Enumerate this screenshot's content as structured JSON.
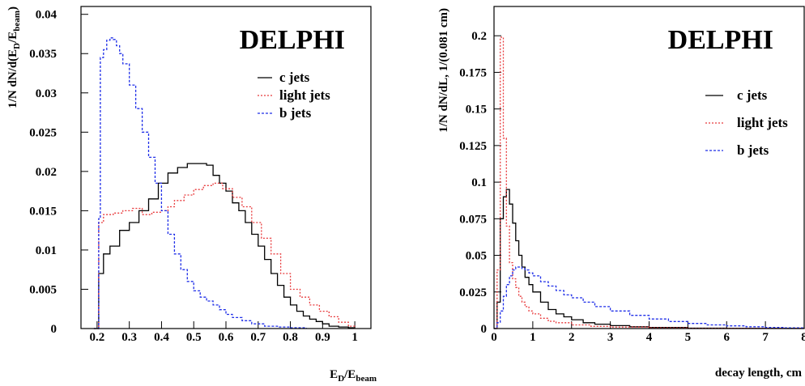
{
  "chart_data": [
    {
      "type": "line",
      "style": "step-histogram",
      "watermark": "DELPHI",
      "xlabel": "E_D/E_beam",
      "xlabel_main": "E",
      "xlabel_sub1": "D",
      "xlabel_slash": "/E",
      "xlabel_sub2": "beam",
      "ylabel": "1/N dN/d(E_D/E_beam)",
      "ylabel_main": "1/N dN/d(E",
      "ylabel_sub1": "D",
      "ylabel_slash": "/E",
      "ylabel_sub2": "beam",
      "ylabel_close": ")",
      "xlim": [
        0.15,
        1.05
      ],
      "ylim": [
        0,
        0.041
      ],
      "xticks": [
        "0.2",
        "0.3",
        "0.4",
        "0.5",
        "0.6",
        "0.7",
        "0.8",
        "0.9",
        "1"
      ],
      "yticks": [
        "0",
        "0.005",
        "0.01",
        "0.015",
        "0.02",
        "0.025",
        "0.03",
        "0.035",
        "0.04"
      ],
      "legend_position": "top-right",
      "series": [
        {
          "name": "c jets",
          "color": "#000000",
          "dash": "solid",
          "points": [
            [
              0.19,
              0
            ],
            [
              0.2,
              0
            ],
            [
              0.205,
              0.007
            ],
            [
              0.22,
              0.0095
            ],
            [
              0.24,
              0.0105
            ],
            [
              0.27,
              0.0125
            ],
            [
              0.3,
              0.0135
            ],
            [
              0.33,
              0.015
            ],
            [
              0.36,
              0.0165
            ],
            [
              0.39,
              0.0185
            ],
            [
              0.42,
              0.0198
            ],
            [
              0.45,
              0.0205
            ],
            [
              0.48,
              0.021
            ],
            [
              0.51,
              0.021
            ],
            [
              0.54,
              0.0208
            ],
            [
              0.56,
              0.0195
            ],
            [
              0.58,
              0.0185
            ],
            [
              0.6,
              0.0175
            ],
            [
              0.62,
              0.016
            ],
            [
              0.64,
              0.015
            ],
            [
              0.66,
              0.0135
            ],
            [
              0.68,
              0.012
            ],
            [
              0.7,
              0.0105
            ],
            [
              0.72,
              0.0088
            ],
            [
              0.74,
              0.007
            ],
            [
              0.76,
              0.0055
            ],
            [
              0.78,
              0.004
            ],
            [
              0.8,
              0.003
            ],
            [
              0.82,
              0.0022
            ],
            [
              0.84,
              0.0016
            ],
            [
              0.86,
              0.0012
            ],
            [
              0.88,
              0.0009
            ],
            [
              0.9,
              0.0006
            ],
            [
              0.92,
              0.0003
            ],
            [
              0.95,
              0.0002
            ],
            [
              0.98,
              0.0001
            ],
            [
              1.0,
              0
            ]
          ]
        },
        {
          "name": "light jets",
          "color": "#e8393b",
          "dash": "2,2",
          "points": [
            [
              0.19,
              0
            ],
            [
              0.2,
              0
            ],
            [
              0.205,
              0.0135
            ],
            [
              0.22,
              0.0145
            ],
            [
              0.25,
              0.0147
            ],
            [
              0.28,
              0.015
            ],
            [
              0.31,
              0.0153
            ],
            [
              0.34,
              0.0145
            ],
            [
              0.37,
              0.0148
            ],
            [
              0.4,
              0.015
            ],
            [
              0.42,
              0.0155
            ],
            [
              0.44,
              0.0163
            ],
            [
              0.47,
              0.017
            ],
            [
              0.5,
              0.0177
            ],
            [
              0.53,
              0.0182
            ],
            [
              0.56,
              0.0185
            ],
            [
              0.59,
              0.0178
            ],
            [
              0.62,
              0.0167
            ],
            [
              0.65,
              0.0155
            ],
            [
              0.68,
              0.0135
            ],
            [
              0.71,
              0.0115
            ],
            [
              0.74,
              0.0095
            ],
            [
              0.77,
              0.007
            ],
            [
              0.8,
              0.005
            ],
            [
              0.83,
              0.004
            ],
            [
              0.86,
              0.003
            ],
            [
              0.89,
              0.0022
            ],
            [
              0.92,
              0.0015
            ],
            [
              0.95,
              0.0008
            ],
            [
              0.98,
              0.0003
            ],
            [
              1.0,
              0
            ]
          ]
        },
        {
          "name": "b jets",
          "color": "#1f2fe8",
          "dash": "3,2",
          "points": [
            [
              0.19,
              0
            ],
            [
              0.2,
              0
            ],
            [
              0.205,
              0.014
            ],
            [
              0.21,
              0.0345
            ],
            [
              0.22,
              0.0355
            ],
            [
              0.23,
              0.0367
            ],
            [
              0.24,
              0.037
            ],
            [
              0.25,
              0.0368
            ],
            [
              0.26,
              0.036
            ],
            [
              0.27,
              0.035
            ],
            [
              0.28,
              0.0337
            ],
            [
              0.3,
              0.031
            ],
            [
              0.32,
              0.028
            ],
            [
              0.34,
              0.025
            ],
            [
              0.36,
              0.0218
            ],
            [
              0.38,
              0.0185
            ],
            [
              0.4,
              0.015
            ],
            [
              0.42,
              0.012
            ],
            [
              0.44,
              0.0095
            ],
            [
              0.46,
              0.0075
            ],
            [
              0.48,
              0.006
            ],
            [
              0.5,
              0.0048
            ],
            [
              0.52,
              0.004
            ],
            [
              0.54,
              0.0035
            ],
            [
              0.56,
              0.003
            ],
            [
              0.58,
              0.0024
            ],
            [
              0.6,
              0.0018
            ],
            [
              0.62,
              0.0014
            ],
            [
              0.65,
              0.001
            ],
            [
              0.68,
              0.0006
            ],
            [
              0.72,
              0.0003
            ],
            [
              0.76,
              0.0002
            ],
            [
              0.8,
              0.0001
            ],
            [
              0.85,
              0
            ]
          ]
        }
      ]
    },
    {
      "type": "line",
      "style": "step-histogram",
      "watermark": "DELPHI",
      "xlabel": "decay length, cm",
      "ylabel": "1/N dN/dL, 1/(0.081 cm)",
      "xlim": [
        0,
        8
      ],
      "ylim": [
        0,
        0.22
      ],
      "xticks": [
        "0",
        "1",
        "2",
        "3",
        "4",
        "5",
        "6",
        "7",
        "8"
      ],
      "yticks": [
        "0",
        "0.025",
        "0.05",
        "0.075",
        "0.1",
        "0.125",
        "0.15",
        "0.175",
        "0.2"
      ],
      "legend_position": "top-right",
      "series": [
        {
          "name": "c jets",
          "color": "#000000",
          "dash": "solid",
          "points": [
            [
              0,
              0
            ],
            [
              0.08,
              0.018
            ],
            [
              0.16,
              0.075
            ],
            [
              0.24,
              0.09
            ],
            [
              0.32,
              0.095
            ],
            [
              0.4,
              0.085
            ],
            [
              0.48,
              0.072
            ],
            [
              0.56,
              0.06
            ],
            [
              0.64,
              0.05
            ],
            [
              0.72,
              0.042
            ],
            [
              0.8,
              0.035
            ],
            [
              0.9,
              0.03
            ],
            [
              1.0,
              0.025
            ],
            [
              1.2,
              0.018
            ],
            [
              1.4,
              0.013
            ],
            [
              1.6,
              0.01
            ],
            [
              1.8,
              0.008
            ],
            [
              2.0,
              0.006
            ],
            [
              2.3,
              0.004
            ],
            [
              2.6,
              0.003
            ],
            [
              3.0,
              0.002
            ],
            [
              3.5,
              0.0012
            ],
            [
              4.0,
              0.0008
            ],
            [
              5.0,
              0.0003
            ],
            [
              6.0,
              0.0001
            ],
            [
              8.0,
              0
            ]
          ]
        },
        {
          "name": "light jets",
          "color": "#e8393b",
          "dash": "2,2",
          "points": [
            [
              0,
              0
            ],
            [
              0.08,
              0.04
            ],
            [
              0.16,
              0.199
            ],
            [
              0.24,
              0.13
            ],
            [
              0.32,
              0.07
            ],
            [
              0.4,
              0.045
            ],
            [
              0.48,
              0.034
            ],
            [
              0.56,
              0.028
            ],
            [
              0.64,
              0.022
            ],
            [
              0.72,
              0.018
            ],
            [
              0.8,
              0.015
            ],
            [
              0.9,
              0.012
            ],
            [
              1.0,
              0.01
            ],
            [
              1.2,
              0.007
            ],
            [
              1.4,
              0.005
            ],
            [
              1.6,
              0.004
            ],
            [
              2.0,
              0.0025
            ],
            [
              2.5,
              0.0015
            ],
            [
              3.0,
              0.001
            ],
            [
              4.0,
              0.0005
            ],
            [
              5.0,
              0.0002
            ],
            [
              8.0,
              0
            ]
          ]
        },
        {
          "name": "b jets",
          "color": "#1f2fe8",
          "dash": "3,2",
          "points": [
            [
              0,
              0
            ],
            [
              0.08,
              0.004
            ],
            [
              0.16,
              0.012
            ],
            [
              0.24,
              0.022
            ],
            [
              0.32,
              0.03
            ],
            [
              0.4,
              0.036
            ],
            [
              0.48,
              0.04
            ],
            [
              0.56,
              0.042
            ],
            [
              0.64,
              0.042
            ],
            [
              0.72,
              0.041
            ],
            [
              0.8,
              0.04
            ],
            [
              0.9,
              0.038
            ],
            [
              1.0,
              0.036
            ],
            [
              1.2,
              0.032
            ],
            [
              1.4,
              0.029
            ],
            [
              1.6,
              0.026
            ],
            [
              1.8,
              0.023
            ],
            [
              2.0,
              0.021
            ],
            [
              2.3,
              0.018
            ],
            [
              2.6,
              0.015
            ],
            [
              3.0,
              0.012
            ],
            [
              3.5,
              0.009
            ],
            [
              4.0,
              0.0065
            ],
            [
              4.5,
              0.0048
            ],
            [
              5.0,
              0.0035
            ],
            [
              5.5,
              0.0025
            ],
            [
              6.0,
              0.0018
            ],
            [
              6.5,
              0.0012
            ],
            [
              7.0,
              0.0008
            ],
            [
              7.5,
              0.0005
            ],
            [
              8.0,
              0.0003
            ]
          ]
        }
      ]
    }
  ]
}
